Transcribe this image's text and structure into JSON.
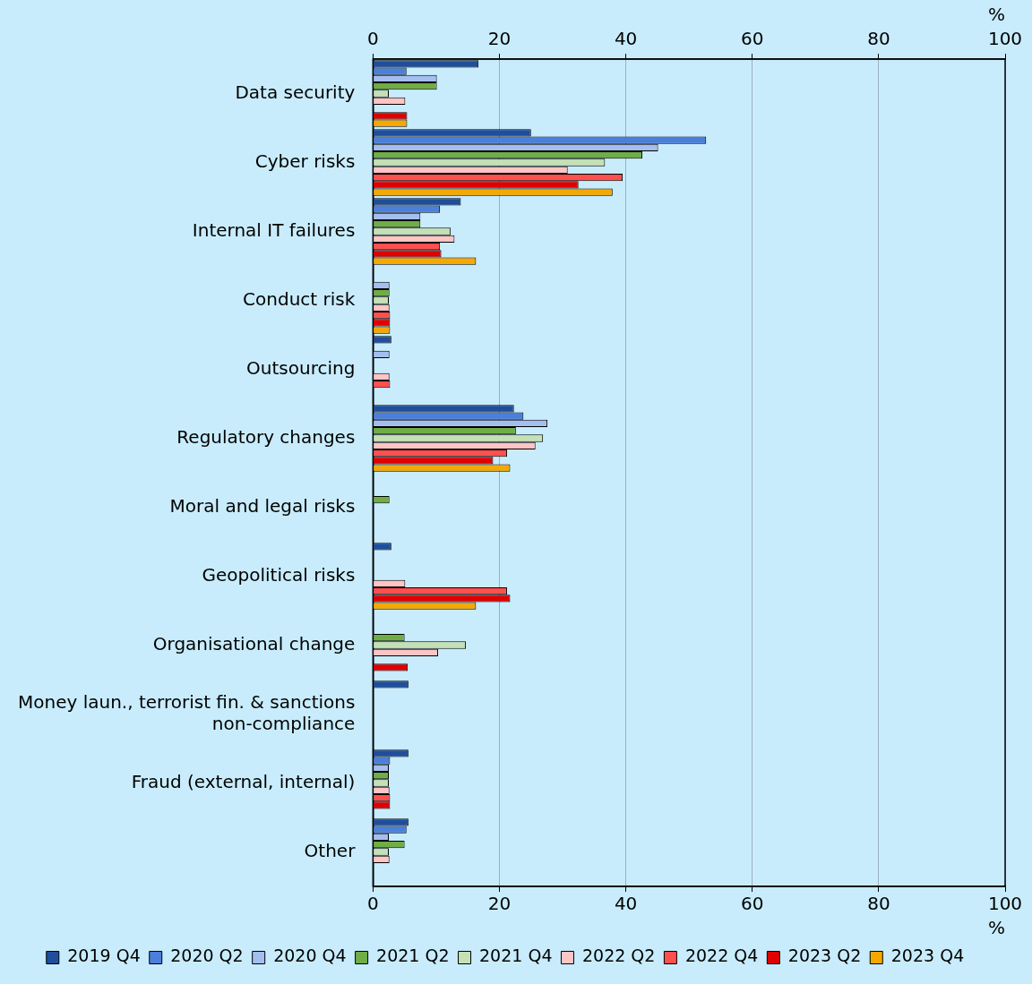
{
  "chart_data": {
    "type": "bar",
    "orientation": "horizontal",
    "xlabel": "%",
    "x2label": "%",
    "xlim": [
      0,
      100
    ],
    "xticks": [
      0,
      20,
      40,
      60,
      80,
      100
    ],
    "x2lim": [
      0,
      100
    ],
    "x2ticks": [
      0,
      20,
      40,
      60,
      80,
      100
    ],
    "grid": "x",
    "legend": "bottom",
    "categories": [
      "Data security",
      "Cyber risks",
      "Internal IT failures",
      "Conduct risk",
      "Outsourcing",
      "Regulatory changes",
      "Moral and legal risks",
      "Geopolitical risks",
      "Organisational change",
      "Money laun., terrorist fin. & sanctions non-compliance",
      "Fraud (external, internal)",
      "Other"
    ],
    "series": [
      {
        "name": "2019 Q4",
        "color": "#1f4e9c",
        "values": [
          16.7,
          25.0,
          13.9,
          null,
          2.9,
          22.3,
          null,
          2.9,
          null,
          5.6,
          5.6,
          5.6
        ]
      },
      {
        "name": "2020 Q2",
        "color": "#4a7fdc",
        "values": [
          5.3,
          52.7,
          10.6,
          null,
          null,
          23.8,
          null,
          null,
          null,
          null,
          2.7,
          5.3
        ]
      },
      {
        "name": "2020 Q4",
        "color": "#a4bef0",
        "values": [
          10.1,
          45.1,
          7.5,
          2.6,
          2.6,
          27.6,
          null,
          null,
          null,
          null,
          2.5,
          2.5
        ]
      },
      {
        "name": "2021 Q2",
        "color": "#70ad47",
        "values": [
          10.1,
          42.6,
          7.5,
          2.6,
          null,
          22.6,
          2.6,
          null,
          5.0,
          null,
          2.5,
          5.0
        ]
      },
      {
        "name": "2021 Q4",
        "color": "#c5e0b4",
        "values": [
          2.5,
          36.7,
          12.3,
          2.5,
          null,
          26.9,
          null,
          null,
          14.7,
          null,
          2.5,
          2.5
        ]
      },
      {
        "name": "2022 Q2",
        "color": "#ffc4c4",
        "values": [
          5.1,
          30.8,
          12.9,
          2.6,
          2.6,
          25.7,
          null,
          5.1,
          10.3,
          null,
          2.6,
          2.6
        ]
      },
      {
        "name": "2022 Q4",
        "color": "#ff5050",
        "values": [
          null,
          39.5,
          10.6,
          2.7,
          2.7,
          21.2,
          null,
          21.2,
          null,
          null,
          2.7,
          null
        ]
      },
      {
        "name": "2023 Q2",
        "color": "#e00000",
        "values": [
          5.4,
          32.5,
          10.8,
          2.7,
          null,
          19.0,
          null,
          21.7,
          5.5,
          null,
          2.7,
          null
        ]
      },
      {
        "name": "2023 Q4",
        "color": "#f5a800",
        "values": [
          5.4,
          37.9,
          16.3,
          2.7,
          null,
          21.7,
          null,
          16.3,
          null,
          null,
          null,
          null
        ]
      }
    ]
  }
}
